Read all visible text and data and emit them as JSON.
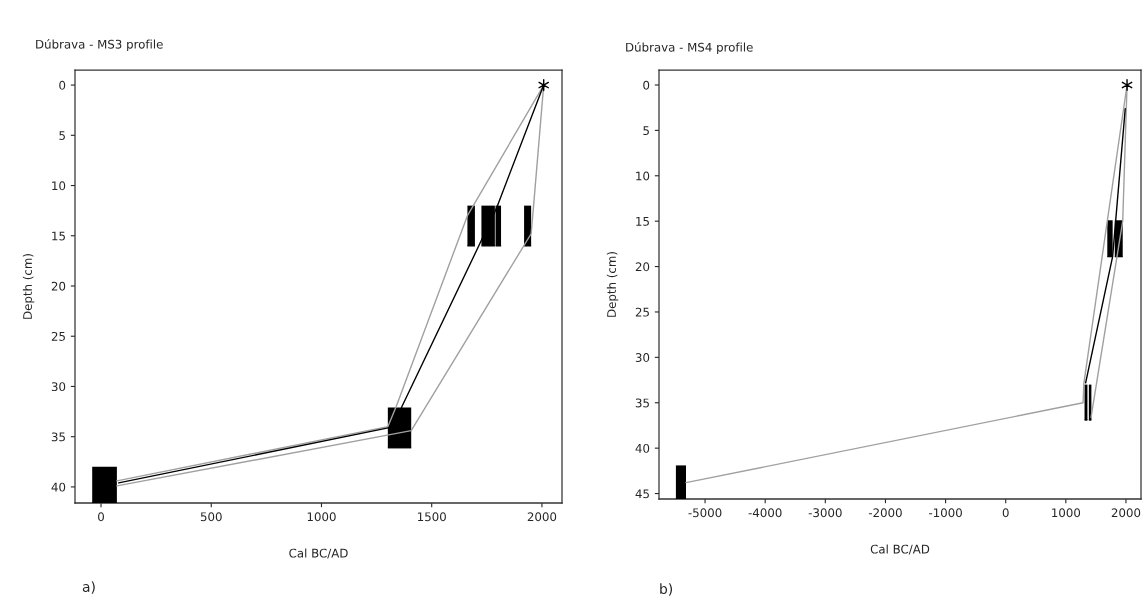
{
  "chart_data": [
    {
      "type": "line",
      "title": "Dúbrava - MS3 profile",
      "xlabel": "Cal BC/AD",
      "ylabel": "Depth (cm)",
      "annotations": [
        "a)"
      ],
      "xlim": [
        -118,
        2091
      ],
      "ylim": [
        41.6,
        -1.5
      ],
      "xticks": [
        0,
        500,
        1000,
        1500,
        2000
      ],
      "yticks": [
        0,
        5,
        10,
        15,
        20,
        25,
        30,
        35,
        40
      ],
      "grid": false,
      "legend": false,
      "series": [
        {
          "color": "#a0a0a0",
          "x": [
            2008,
            1662,
            1339,
            1301,
            72
          ],
          "values": [
            0,
            13,
            32,
            34.0,
            39.4
          ]
        },
        {
          "color": "#a0a0a0",
          "x": [
            2008,
            1961,
            1951,
            1407,
            72
          ],
          "values": [
            0,
            12.3,
            14.8,
            34.4,
            39.9
          ]
        },
        {
          "color": "#000000",
          "x": [
            2008,
            1793,
            1718,
            1365,
            1330,
            80
          ],
          "values": [
            0,
            12.3,
            15.8,
            32,
            34,
            39.6
          ]
        },
        {
          "type": "bar",
          "color": "#000000",
          "x": [
            16,
            1354,
            1679,
            1756,
            1802,
            1935
          ],
          "xerrors": [
            [
              -40,
              72
            ],
            [
              1301,
              1407
            ],
            [
              1662,
              1696
            ],
            [
              1726,
              1787
            ],
            [
              1790,
              1815
            ],
            [
              1919,
              1951
            ]
          ],
          "base": [
            38,
            32.1,
            12,
            12,
            12,
            12
          ],
          "values": [
            3.6,
            4,
            4,
            4,
            4,
            4
          ]
        },
        {
          "type": "scatter",
          "color": "#000000",
          "marker": "cross",
          "x": [
            2008
          ],
          "values": [
            0
          ]
        }
      ]
    },
    {
      "type": "line",
      "title": "Dúbrava - MS4 profile",
      "xlabel": "Cal BC/AD",
      "ylabel": "Depth (cm)",
      "annotations": [
        "b)"
      ],
      "xlim": [
        -5766,
        2250
      ],
      "ylim": [
        45.6,
        -1.65
      ],
      "xticks": [
        -5000,
        -4000,
        -3000,
        -2000,
        -1000,
        0,
        1000,
        2000
      ],
      "yticks": [
        0,
        5,
        10,
        15,
        20,
        25,
        30,
        35,
        40,
        45
      ],
      "grid": false,
      "legend": false,
      "series": [
        {
          "color": "#a0a0a0",
          "x": [
            2018,
            1689,
            1299,
            1287,
            -5317
          ],
          "values": [
            0,
            15,
            32.9,
            35,
            43.8
          ]
        },
        {
          "color": "#a0a0a0",
          "x": [
            2018,
            1946,
            1419
          ],
          "values": [
            0,
            15,
            36.6
          ]
        },
        {
          "color": "#000000",
          "x": [
            1988,
            1778,
            1329
          ],
          "values": [
            2.6,
            18.9,
            32.8
          ]
        },
        {
          "type": "bar",
          "color": "#000000",
          "x": [
            -5401,
            1335,
            1404,
            1734,
            1880
          ],
          "xerrors": [
            [
              -5485,
              -5317
            ],
            [
              1311,
              1359
            ],
            [
              1383,
              1425
            ],
            [
              1689,
              1778
            ],
            [
              1814,
              1946
            ]
          ],
          "base": [
            41.9,
            33,
            33,
            14.9,
            14.9
          ],
          "values": [
            3.7,
            3.9,
            3.9,
            4,
            4
          ]
        },
        {
          "type": "scatter",
          "color": "#000000",
          "marker": "cross",
          "x": [
            2018
          ],
          "values": [
            0
          ]
        }
      ]
    }
  ]
}
